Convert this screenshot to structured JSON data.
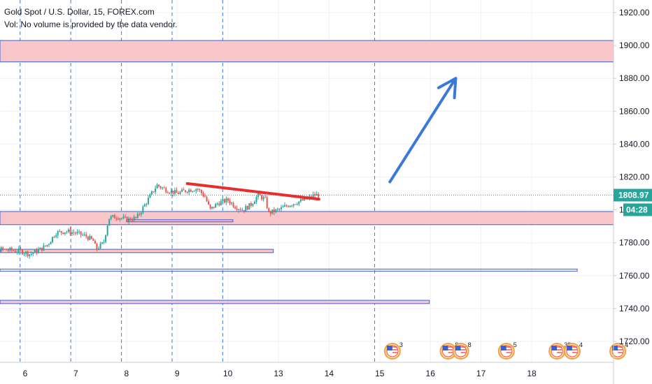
{
  "header": {
    "title": "Gold Spot / U.S. Dollar, 15, FOREX.com",
    "volume_note": "Vol: No volume is provided by the data vendor."
  },
  "price_axis": {
    "last_price_label": "1808.97",
    "countdown_label": "04:28"
  },
  "colors": {
    "zone_fill": "#f9c6c9",
    "zone_border": "#3d5fd6",
    "candle_up": "#26a69a",
    "candle_down": "#ef5350",
    "resistance_line": "#e62e2e",
    "arrow": "#3a78d9",
    "session_divider": "#3d7ae0",
    "last_price_line": "#26a69a",
    "price_badge": "#26a69a"
  },
  "chart_data": {
    "type": "candlestick",
    "symbol": "XAUUSD",
    "interval": "15",
    "x_ticks": [
      "6",
      "7",
      "8",
      "9",
      "10",
      "13",
      "14",
      "15",
      "16",
      "17",
      "18"
    ],
    "y_ticks": [
      1720,
      1740,
      1760,
      1780,
      1800,
      1820,
      1840,
      1860,
      1880,
      1900,
      1920
    ],
    "ylim": [
      1707,
      1932
    ],
    "last_price": 1808.97,
    "price_path_approx": [
      [
        5.0,
        1777
      ],
      [
        5.5,
        1776
      ],
      [
        5.9,
        1775
      ],
      [
        6.1,
        1773
      ],
      [
        6.3,
        1776
      ],
      [
        6.45,
        1779
      ],
      [
        6.6,
        1786
      ],
      [
        6.8,
        1787
      ],
      [
        7.0,
        1786
      ],
      [
        7.2,
        1784
      ],
      [
        7.35,
        1781
      ],
      [
        7.4,
        1776
      ],
      [
        7.55,
        1780
      ],
      [
        7.65,
        1795
      ],
      [
        7.8,
        1796
      ],
      [
        8.0,
        1794
      ],
      [
        8.2,
        1795
      ],
      [
        8.4,
        1805
      ],
      [
        8.6,
        1815
      ],
      [
        8.8,
        1812
      ],
      [
        9.0,
        1810
      ],
      [
        9.2,
        1812
      ],
      [
        9.4,
        1813
      ],
      [
        9.55,
        1808
      ],
      [
        9.65,
        1800
      ],
      [
        9.8,
        1804
      ],
      [
        10.0,
        1806
      ],
      [
        10.15,
        1802
      ],
      [
        10.3,
        1800
      ],
      [
        10.45,
        1803
      ],
      [
        10.6,
        1809
      ],
      [
        10.75,
        1806
      ],
      [
        10.8,
        1798
      ],
      [
        11.0,
        1800
      ],
      [
        11.2,
        1803
      ],
      [
        11.4,
        1805
      ],
      [
        11.6,
        1807
      ],
      [
        11.7,
        1809
      ],
      [
        11.8,
        1809
      ]
    ],
    "zones": [
      {
        "from": 1890,
        "to": 1903,
        "x_start": null,
        "x_end": null,
        "filled": true
      },
      {
        "from": 1791,
        "to": 1799,
        "x_start": null,
        "x_end": null,
        "filled": true
      },
      {
        "from": 1774,
        "to": 1776,
        "x_start": null,
        "x_end": 10.9,
        "filled": true
      },
      {
        "from": 1763,
        "to": 1764,
        "x_start": null,
        "x_end": 16.9,
        "filled": false
      },
      {
        "from": 1743,
        "to": 1745,
        "x_start": null,
        "x_end": 13.98,
        "filled": true
      },
      {
        "from": 1793,
        "to": 1794,
        "x_start": 8.0,
        "x_end": 10.1,
        "filled": false
      }
    ],
    "resistance_line": {
      "x1": 9.2,
      "y1": 1816,
      "x2": 11.8,
      "y2": 1806.5
    },
    "projection_arrow": {
      "x1": 13.2,
      "y1": 1817,
      "x2": 14.5,
      "y2": 1880
    },
    "session_breaks": [
      5.9,
      6.9,
      7.9,
      8.9,
      9.9,
      12.9
    ],
    "event_markers": [
      {
        "x": 13.25,
        "label": "3"
      },
      {
        "x": 14.35,
        "label": "9"
      },
      {
        "x": 14.6,
        "label": "8"
      },
      {
        "x": 15.5,
        "label": "5"
      },
      {
        "x": 16.5,
        "label": "38"
      },
      {
        "x": 16.8,
        "label": "4"
      },
      {
        "x": 17.7,
        "label": "4"
      }
    ]
  }
}
